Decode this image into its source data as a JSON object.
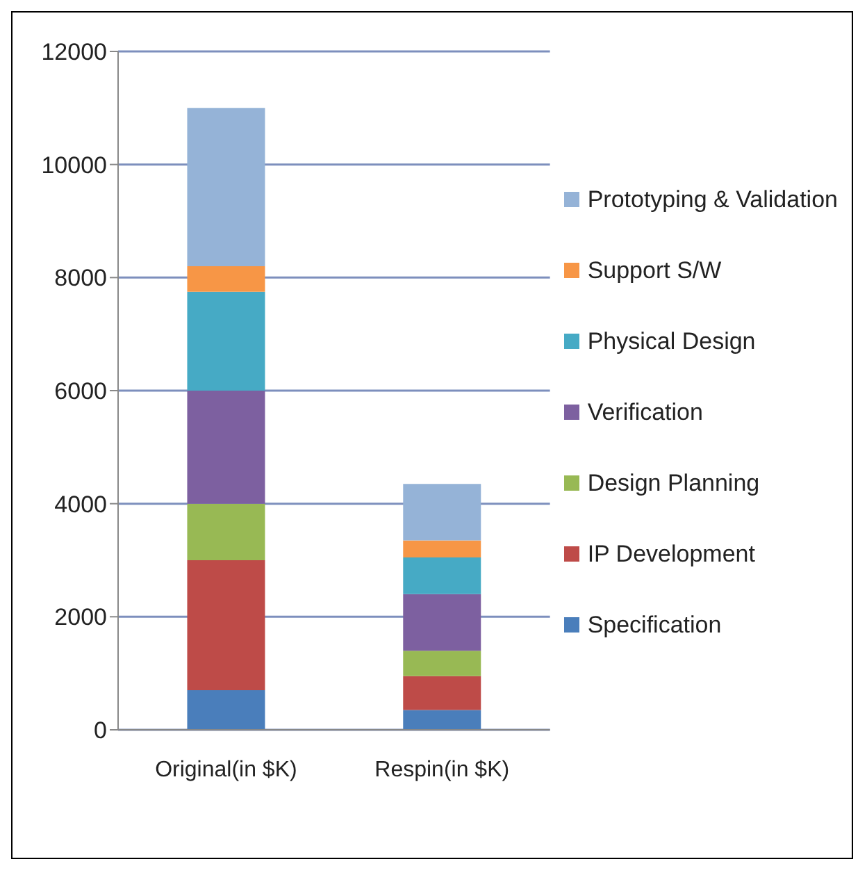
{
  "chart_data": {
    "type": "bar",
    "stacked": true,
    "categories": [
      "Original(in $K)",
      "Respin(in $K)"
    ],
    "series": [
      {
        "name": "Specification",
        "color": "#4a7ebb",
        "values": [
          700,
          350
        ]
      },
      {
        "name": "IP Development",
        "color": "#be4b48",
        "values": [
          2300,
          600
        ]
      },
      {
        "name": "Design Planning",
        "color": "#98b954",
        "values": [
          1000,
          450
        ]
      },
      {
        "name": "Verification",
        "color": "#7d60a0",
        "values": [
          2000,
          1000
        ]
      },
      {
        "name": "Physical Design",
        "color": "#46aac5",
        "values": [
          1750,
          650
        ]
      },
      {
        "name": "Support S/W",
        "color": "#f79646",
        "values": [
          450,
          300
        ]
      },
      {
        "name": "Prototyping & Validation",
        "color": "#95b3d7",
        "values": [
          2800,
          1000
        ]
      }
    ],
    "ylim": [
      0,
      12000
    ],
    "yticks": [
      0,
      2000,
      4000,
      6000,
      8000,
      10000,
      12000
    ],
    "grid": "y",
    "legend": "right"
  }
}
